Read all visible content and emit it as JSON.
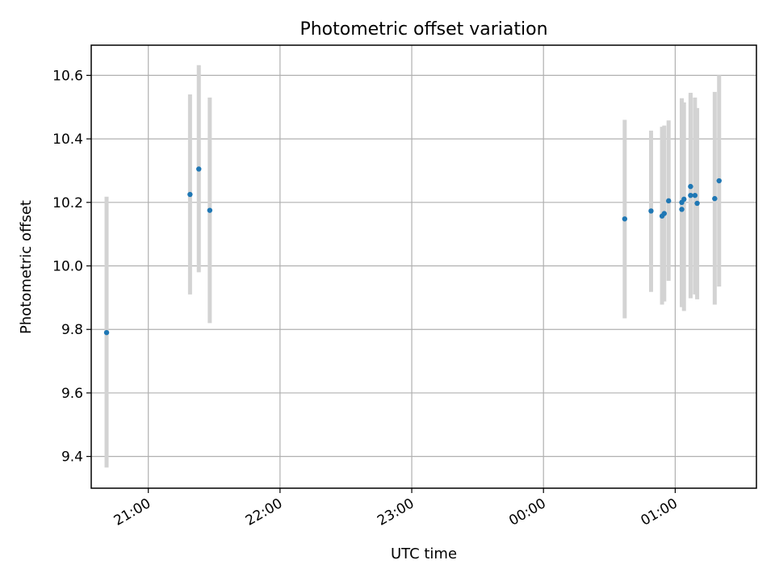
{
  "chart_data": {
    "type": "scatter",
    "title": "Photometric offset variation",
    "xlabel": "UTC time",
    "ylabel": "Photometric offset",
    "x_axis": {
      "kind": "time",
      "ticks": [
        "21:00",
        "22:00",
        "23:00",
        "00:00",
        "01:00"
      ],
      "tick_label_rotation_deg": 30
    },
    "ylim": [
      9.3,
      10.695
    ],
    "yticks": [
      9.4,
      9.6,
      9.8,
      10.0,
      10.2,
      10.4,
      10.6
    ],
    "grid": true,
    "colors": {
      "points": "#1f77b4",
      "errorbars": "#d3d3d3"
    },
    "points": [
      {
        "time": "20:41",
        "y": 9.79,
        "lo": 9.365,
        "hi": 10.218
      },
      {
        "time": "21:19",
        "y": 10.225,
        "lo": 9.91,
        "hi": 10.54
      },
      {
        "time": "21:23",
        "y": 10.305,
        "lo": 9.98,
        "hi": 10.632
      },
      {
        "time": "21:28",
        "y": 10.175,
        "lo": 9.82,
        "hi": 10.53
      },
      {
        "time": "00:37",
        "y": 10.148,
        "lo": 9.835,
        "hi": 10.46
      },
      {
        "time": "00:49",
        "y": 10.173,
        "lo": 9.918,
        "hi": 10.426
      },
      {
        "time": "00:54",
        "y": 10.157,
        "lo": 9.878,
        "hi": 10.438
      },
      {
        "time": "00:55",
        "y": 10.165,
        "lo": 9.888,
        "hi": 10.442
      },
      {
        "time": "00:57",
        "y": 10.205,
        "lo": 9.953,
        "hi": 10.458
      },
      {
        "time": "01:03",
        "y": 10.178,
        "lo": 9.878,
        "hi": 10.528
      },
      {
        "time": "01:03",
        "y": 10.2,
        "lo": 9.87,
        "hi": 10.52
      },
      {
        "time": "01:04",
        "y": 10.21,
        "lo": 9.858,
        "hi": 10.515
      },
      {
        "time": "01:07",
        "y": 10.222,
        "lo": 9.898,
        "hi": 10.545
      },
      {
        "time": "01:07",
        "y": 10.25,
        "lo": 9.98,
        "hi": 10.54
      },
      {
        "time": "01:09",
        "y": 10.222,
        "lo": 9.91,
        "hi": 10.53
      },
      {
        "time": "01:10",
        "y": 10.197,
        "lo": 9.895,
        "hi": 10.497
      },
      {
        "time": "01:18",
        "y": 10.212,
        "lo": 9.878,
        "hi": 10.548
      },
      {
        "time": "01:20",
        "y": 10.268,
        "lo": 9.935,
        "hi": 10.6
      }
    ]
  }
}
